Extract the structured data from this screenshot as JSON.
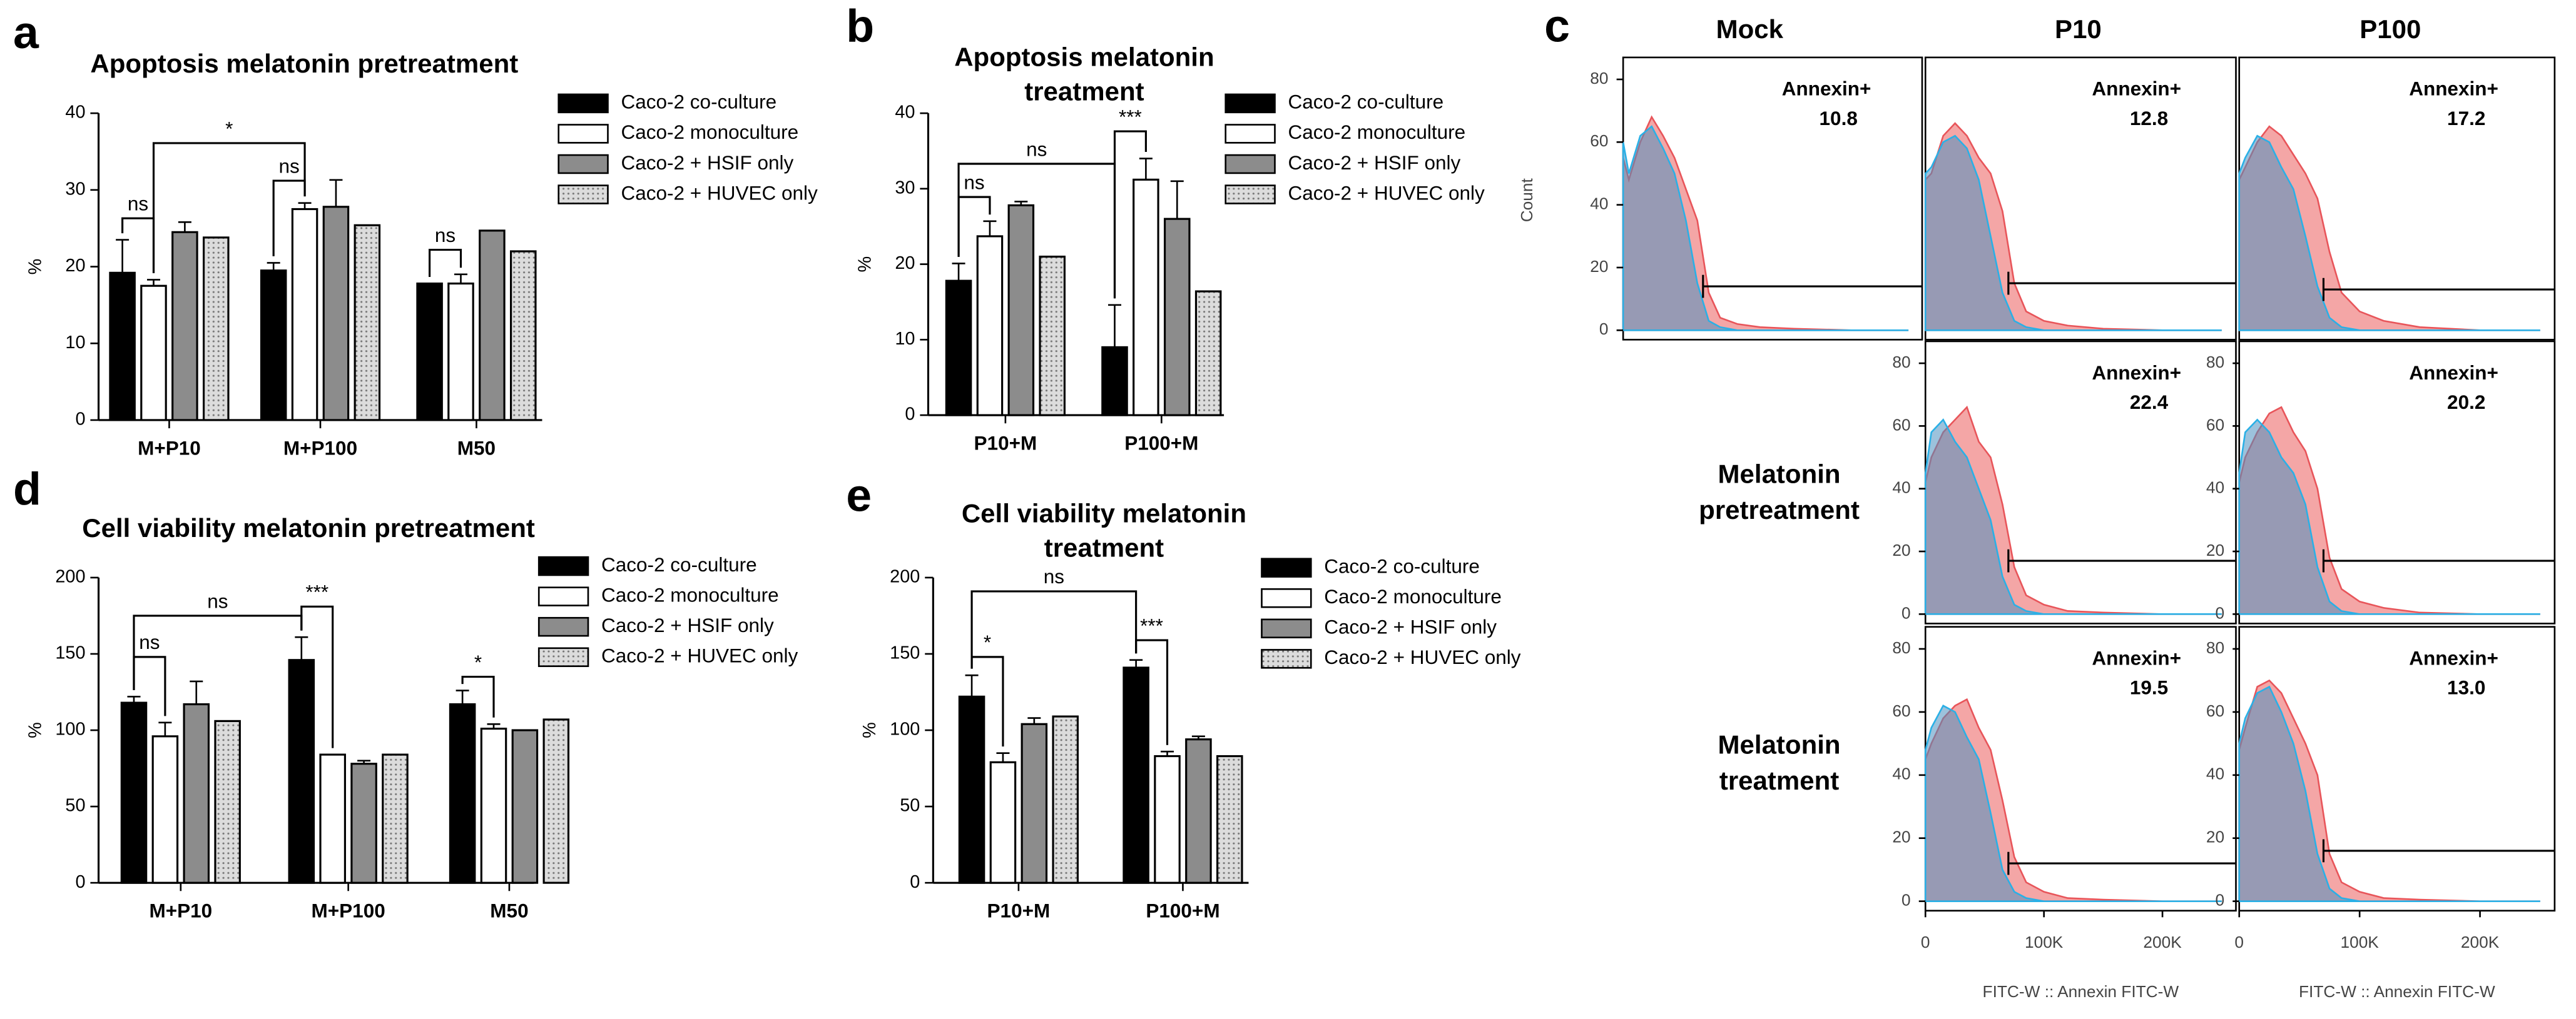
{
  "chart_data": [
    {
      "type": "bar",
      "panel": "a",
      "title": [
        "Apoptosis melatonin pretreatment"
      ],
      "ylabel": "%",
      "ylim": [
        0,
        40
      ],
      "yticks": [
        0,
        10,
        20,
        30,
        40
      ],
      "categories": [
        "M+P10",
        "M+P100",
        "M50"
      ],
      "series": [
        {
          "name": "Caco-2 co-culture",
          "color": "#000000",
          "values": [
            19.2,
            19.5,
            17.8
          ],
          "errors": [
            4.3,
            1.0,
            0
          ]
        },
        {
          "name": "Caco-2 monoculture",
          "color": "#ffffff",
          "values": [
            17.5,
            27.5,
            17.8
          ],
          "errors": [
            0.8,
            0.8,
            1.2
          ]
        },
        {
          "name": "Caco-2 + HSIF only",
          "color": "#8c8c8c",
          "values": [
            24.5,
            27.8,
            24.7
          ],
          "errors": [
            1.3,
            3.5,
            0
          ]
        },
        {
          "name": "Caco-2 + HUVEC only",
          "color": "#dcdcdc",
          "pattern": "dots",
          "values": [
            23.8,
            25.4,
            22.0
          ],
          "errors": [
            0,
            0,
            0
          ]
        }
      ],
      "significance": [
        {
          "label": "ns",
          "y": 26.3,
          "from": [
            0,
            0
          ],
          "to": [
            0,
            1
          ]
        },
        {
          "label": "*",
          "y": 36.1,
          "from": [
            0,
            1
          ],
          "to": [
            1,
            1
          ]
        },
        {
          "label": "ns",
          "y": 31.2,
          "from": [
            1,
            0
          ],
          "to": [
            1,
            1
          ]
        },
        {
          "label": "ns",
          "y": 22.2,
          "from": [
            2,
            0
          ],
          "to": [
            2,
            1
          ]
        }
      ]
    },
    {
      "type": "bar",
      "panel": "b",
      "title": [
        "Apoptosis melatonin",
        "treatment"
      ],
      "ylabel": "%",
      "ylim": [
        0,
        40
      ],
      "yticks": [
        0,
        10,
        20,
        30,
        40
      ],
      "categories": [
        "P10+M",
        "P100+M"
      ],
      "series": [
        {
          "name": "Caco-2 co-culture",
          "color": "#000000",
          "values": [
            17.8,
            9.0
          ],
          "errors": [
            2.3,
            5.6
          ]
        },
        {
          "name": "Caco-2 monoculture",
          "color": "#ffffff",
          "values": [
            23.7,
            31.2
          ],
          "errors": [
            2.0,
            2.8
          ]
        },
        {
          "name": "Caco-2 + HSIF only",
          "color": "#8c8c8c",
          "values": [
            27.8,
            26.0
          ],
          "errors": [
            0.5,
            5.0
          ]
        },
        {
          "name": "Caco-2 + HUVEC only",
          "color": "#dcdcdc",
          "pattern": "dots",
          "values": [
            21.0,
            16.4
          ],
          "errors": [
            0,
            0
          ]
        }
      ],
      "significance": [
        {
          "label": "ns",
          "y": 28.9,
          "from": [
            0,
            0
          ],
          "to": [
            0,
            1
          ]
        },
        {
          "label": "ns",
          "y": 33.3,
          "from": [
            0,
            0
          ],
          "to": [
            1,
            0
          ]
        },
        {
          "label": "***",
          "y": 37.6,
          "from": [
            1,
            0
          ],
          "to": [
            1,
            1
          ]
        }
      ]
    },
    {
      "type": "bar",
      "panel": "d",
      "title": [
        "Cell viability melatonin pretreatment"
      ],
      "ylabel": "%",
      "ylim": [
        0,
        200
      ],
      "yticks": [
        0,
        50,
        100,
        150,
        200
      ],
      "categories": [
        "M+P10",
        "M+P100",
        "M50"
      ],
      "series": [
        {
          "name": "Caco-2 co-culture",
          "color": "#000000",
          "values": [
            118,
            146,
            117
          ],
          "errors": [
            4,
            15,
            9
          ]
        },
        {
          "name": "Caco-2 monoculture",
          "color": "#ffffff",
          "values": [
            96,
            84,
            101
          ],
          "errors": [
            9,
            0,
            3
          ]
        },
        {
          "name": "Caco-2 + HSIF only",
          "color": "#8c8c8c",
          "values": [
            117,
            78,
            100
          ],
          "errors": [
            15,
            2,
            0
          ]
        },
        {
          "name": "Caco-2 + HUVEC only",
          "color": "#dcdcdc",
          "pattern": "dots",
          "values": [
            106,
            84,
            107
          ],
          "errors": [
            0,
            0,
            0
          ]
        }
      ],
      "significance": [
        {
          "label": "ns",
          "y": 148,
          "from": [
            0,
            0
          ],
          "to": [
            0,
            1
          ]
        },
        {
          "label": "ns",
          "y": 175,
          "from": [
            0,
            0
          ],
          "to": [
            1,
            0
          ]
        },
        {
          "label": "***",
          "y": 181,
          "from": [
            1,
            0
          ],
          "to": [
            1,
            1
          ]
        },
        {
          "label": "*",
          "y": 135,
          "from": [
            2,
            0
          ],
          "to": [
            2,
            1
          ]
        }
      ]
    },
    {
      "type": "bar",
      "panel": "e",
      "title": [
        "Cell viability melatonin",
        "treatment"
      ],
      "ylabel": "%",
      "ylim": [
        0,
        200
      ],
      "yticks": [
        0,
        50,
        100,
        150,
        200
      ],
      "categories": [
        "P10+M",
        "P100+M"
      ],
      "series": [
        {
          "name": "Caco-2 co-culture",
          "color": "#000000",
          "values": [
            122,
            141
          ],
          "errors": [
            14,
            5
          ]
        },
        {
          "name": "Caco-2 monoculture",
          "color": "#ffffff",
          "values": [
            79,
            83
          ],
          "errors": [
            6,
            3
          ]
        },
        {
          "name": "Caco-2 + HSIF only",
          "color": "#8c8c8c",
          "values": [
            104,
            94
          ],
          "errors": [
            4,
            2
          ]
        },
        {
          "name": "Caco-2 + HUVEC only",
          "color": "#dcdcdc",
          "pattern": "dots",
          "values": [
            109,
            83
          ],
          "errors": [
            0,
            0
          ]
        }
      ],
      "significance": [
        {
          "label": "*",
          "y": 148,
          "from": [
            0,
            0
          ],
          "to": [
            0,
            1
          ]
        },
        {
          "label": "ns",
          "y": 191,
          "from": [
            0,
            0
          ],
          "to": [
            1,
            0
          ]
        },
        {
          "label": "***",
          "y": 159,
          "from": [
            1,
            0
          ],
          "to": [
            1,
            1
          ]
        }
      ]
    },
    {
      "type": "flow",
      "panel": "c",
      "columns": [
        "Mock",
        "P10",
        "P100"
      ],
      "rows": [
        [
          "Melatonin",
          "pretreatment"
        ],
        [
          "Melatonin",
          "treatment"
        ]
      ],
      "xlim": [
        0,
        262000
      ],
      "ylim": [
        -3,
        87
      ],
      "annotation": "Annexin+",
      "x": [
        0,
        5000,
        15000,
        25000,
        35000,
        45000,
        55000,
        65000,
        75000,
        85000,
        100000,
        120000,
        150000,
        200000,
        250000
      ],
      "subplots": [
        {
          "ylabel": "Count",
          "yticks": [
            0,
            20,
            40,
            60,
            80
          ],
          "percent": 10.8,
          "gate": {
            "x": 70000,
            "y": 14
          },
          "series": [
            {
              "color": "#e8555a",
              "values": [
                55,
                48,
                60,
                68,
                62,
                55,
                45,
                35,
                12,
                4,
                2,
                1,
                0.5,
                0,
                0
              ]
            },
            {
              "color": "#2ab0e6",
              "values": [
                60,
                50,
                62,
                65,
                58,
                50,
                35,
                15,
                3,
                1,
                0,
                0,
                0,
                0,
                0
              ]
            }
          ]
        },
        {
          "percent": 12.8,
          "gate": {
            "x": 70000,
            "y": 15
          },
          "series": [
            {
              "color": "#e8555a",
              "values": [
                48,
                50,
                62,
                66,
                62,
                55,
                50,
                38,
                15,
                6,
                3,
                1.5,
                0.5,
                0,
                0
              ]
            },
            {
              "color": "#2ab0e6",
              "values": [
                50,
                52,
                60,
                62,
                58,
                48,
                30,
                12,
                3,
                1,
                0,
                0,
                0,
                0,
                0
              ]
            }
          ]
        },
        {
          "percent": 17.2,
          "gate": {
            "x": 70000,
            "y": 13
          },
          "series": [
            {
              "color": "#e8555a",
              "values": [
                48,
                52,
                60,
                65,
                62,
                56,
                50,
                42,
                25,
                12,
                6,
                3,
                1,
                0,
                0
              ]
            },
            {
              "color": "#2ab0e6",
              "values": [
                50,
                55,
                62,
                60,
                52,
                45,
                30,
                14,
                4,
                1,
                0,
                0,
                0,
                0,
                0
              ]
            }
          ]
        },
        {
          "yticks": [
            0,
            20,
            40,
            60,
            80
          ],
          "percent": 22.4,
          "gate": {
            "x": 70000,
            "y": 17
          },
          "series": [
            {
              "color": "#e8555a",
              "values": [
                42,
                50,
                58,
                62,
                66,
                55,
                50,
                35,
                15,
                6,
                3,
                1,
                0.5,
                0,
                0
              ]
            },
            {
              "color": "#2ab0e6",
              "values": [
                45,
                58,
                62,
                55,
                50,
                40,
                30,
                12,
                3,
                1,
                0,
                0,
                0,
                0,
                0
              ]
            }
          ]
        },
        {
          "yticks": [
            0,
            20,
            40,
            60,
            80
          ],
          "percent": 20.2,
          "gate": {
            "x": 70000,
            "y": 17
          },
          "series": [
            {
              "color": "#e8555a",
              "values": [
                42,
                50,
                58,
                64,
                66,
                58,
                52,
                40,
                18,
                8,
                4,
                2,
                0.5,
                0,
                0
              ]
            },
            {
              "color": "#2ab0e6",
              "values": [
                45,
                58,
                62,
                58,
                50,
                45,
                35,
                15,
                4,
                1,
                0,
                0,
                0,
                0,
                0
              ]
            }
          ]
        },
        {
          "yticks": [
            0,
            20,
            40,
            60,
            80
          ],
          "percent": 19.5,
          "gate": {
            "x": 70000,
            "y": 12
          },
          "xlabel": "FITC-W :: Annexin FITC-W",
          "xticks": [
            0,
            {
              "value": 100000,
              "label": "100K"
            },
            {
              "value": 200000,
              "label": "200K"
            }
          ],
          "series": [
            {
              "color": "#e8555a",
              "values": [
                45,
                50,
                58,
                62,
                64,
                55,
                48,
                32,
                14,
                6,
                3,
                1,
                0.5,
                0,
                0
              ]
            },
            {
              "color": "#2ab0e6",
              "values": [
                48,
                55,
                62,
                60,
                52,
                45,
                28,
                10,
                3,
                1,
                0,
                0,
                0,
                0,
                0
              ]
            }
          ]
        },
        {
          "yticks": [
            0,
            20,
            40,
            60,
            80
          ],
          "percent": 13.0,
          "percent_label": "13.0",
          "gate": {
            "x": 70000,
            "y": 16
          },
          "xlabel": "FITC-W :: Annexin FITC-W",
          "xticks": [
            0,
            {
              "value": 100000,
              "label": "100K"
            },
            {
              "value": 200000,
              "label": "200K"
            }
          ],
          "series": [
            {
              "color": "#e8555a",
              "values": [
                48,
                55,
                68,
                70,
                66,
                58,
                50,
                40,
                15,
                6,
                3,
                1,
                0.5,
                0,
                0
              ]
            },
            {
              "color": "#2ab0e6",
              "values": [
                50,
                58,
                66,
                68,
                60,
                50,
                35,
                15,
                4,
                1,
                0,
                0,
                0,
                0,
                0
              ]
            }
          ]
        }
      ]
    }
  ]
}
